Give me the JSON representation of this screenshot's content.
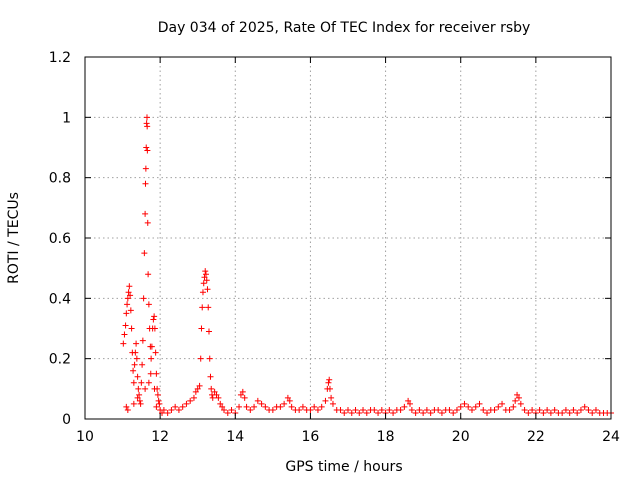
{
  "chart_data": {
    "type": "scatter",
    "title": "Day 034 of 2025, Rate Of TEC Index for receiver rsby",
    "xlabel": "GPS time / hours",
    "ylabel": "ROTI / TECUs",
    "xlim": [
      10,
      24
    ],
    "ylim": [
      0,
      1.2
    ],
    "xticks": [
      10,
      12,
      14,
      16,
      18,
      20,
      22,
      24
    ],
    "xtick_labels": [
      "10",
      "12",
      "14",
      "16",
      "18",
      "20",
      "22",
      "24"
    ],
    "yticks": [
      0,
      0.2,
      0.4,
      0.6,
      0.8,
      1.0,
      1.2
    ],
    "ytick_labels": [
      "0",
      "0.2",
      "0.4",
      "0.6",
      "0.8",
      "1",
      "1.2"
    ],
    "grid": true,
    "marker": "plus",
    "color": "#ff0000",
    "series": [
      {
        "name": "ROTI",
        "points": [
          [
            11.02,
            0.25
          ],
          [
            11.05,
            0.28
          ],
          [
            11.08,
            0.31
          ],
          [
            11.1,
            0.35
          ],
          [
            11.12,
            0.38
          ],
          [
            11.14,
            0.4
          ],
          [
            11.16,
            0.42
          ],
          [
            11.18,
            0.44
          ],
          [
            11.2,
            0.41
          ],
          [
            11.22,
            0.36
          ],
          [
            11.24,
            0.3
          ],
          [
            11.26,
            0.22
          ],
          [
            11.28,
            0.16
          ],
          [
            11.3,
            0.12
          ],
          [
            11.32,
            0.18
          ],
          [
            11.34,
            0.22
          ],
          [
            11.36,
            0.25
          ],
          [
            11.38,
            0.2
          ],
          [
            11.4,
            0.14
          ],
          [
            11.42,
            0.1
          ],
          [
            11.44,
            0.08
          ],
          [
            11.46,
            0.06
          ],
          [
            11.5,
            0.12
          ],
          [
            11.52,
            0.18
          ],
          [
            11.54,
            0.26
          ],
          [
            11.56,
            0.4
          ],
          [
            11.58,
            0.55
          ],
          [
            11.6,
            0.68
          ],
          [
            11.61,
            0.78
          ],
          [
            11.62,
            0.83
          ],
          [
            11.63,
            0.9
          ],
          [
            11.64,
            0.98
          ],
          [
            11.65,
            1.0
          ],
          [
            11.655,
            0.97
          ],
          [
            11.66,
            0.89
          ],
          [
            11.67,
            0.65
          ],
          [
            11.68,
            0.48
          ],
          [
            11.7,
            0.38
          ],
          [
            11.72,
            0.3
          ],
          [
            11.74,
            0.24
          ],
          [
            11.76,
            0.2
          ],
          [
            11.78,
            0.24
          ],
          [
            11.8,
            0.3
          ],
          [
            11.82,
            0.33
          ],
          [
            11.84,
            0.34
          ],
          [
            11.86,
            0.3
          ],
          [
            11.88,
            0.22
          ],
          [
            11.9,
            0.15
          ],
          [
            11.92,
            0.1
          ],
          [
            11.94,
            0.08
          ],
          [
            11.96,
            0.06
          ],
          [
            11.98,
            0.05
          ],
          [
            11.1,
            0.04
          ],
          [
            11.14,
            0.03
          ],
          [
            11.3,
            0.05
          ],
          [
            11.4,
            0.07
          ],
          [
            11.48,
            0.05
          ],
          [
            11.6,
            0.1
          ],
          [
            11.7,
            0.12
          ],
          [
            11.75,
            0.15
          ],
          [
            11.85,
            0.1
          ],
          [
            11.9,
            0.04
          ],
          [
            12.0,
            0.03
          ],
          [
            12.05,
            0.02
          ],
          [
            12.1,
            0.03
          ],
          [
            12.2,
            0.02
          ],
          [
            12.3,
            0.03
          ],
          [
            12.4,
            0.04
          ],
          [
            12.5,
            0.03
          ],
          [
            12.6,
            0.04
          ],
          [
            12.7,
            0.05
          ],
          [
            12.8,
            0.06
          ],
          [
            12.9,
            0.07
          ],
          [
            12.95,
            0.09
          ],
          [
            13.0,
            0.1
          ],
          [
            13.05,
            0.11
          ],
          [
            13.08,
            0.2
          ],
          [
            13.1,
            0.3
          ],
          [
            13.12,
            0.37
          ],
          [
            13.14,
            0.42
          ],
          [
            13.16,
            0.45
          ],
          [
            13.18,
            0.47
          ],
          [
            13.2,
            0.49
          ],
          [
            13.22,
            0.48
          ],
          [
            13.24,
            0.46
          ],
          [
            13.26,
            0.43
          ],
          [
            13.28,
            0.37
          ],
          [
            13.3,
            0.29
          ],
          [
            13.32,
            0.2
          ],
          [
            13.34,
            0.14
          ],
          [
            13.36,
            0.1
          ],
          [
            13.38,
            0.08
          ],
          [
            13.4,
            0.07
          ],
          [
            13.45,
            0.09
          ],
          [
            13.5,
            0.08
          ],
          [
            13.55,
            0.07
          ],
          [
            13.6,
            0.05
          ],
          [
            13.65,
            0.04
          ],
          [
            13.7,
            0.03
          ],
          [
            13.8,
            0.02
          ],
          [
            13.9,
            0.03
          ],
          [
            14.0,
            0.02
          ],
          [
            14.1,
            0.04
          ],
          [
            14.15,
            0.08
          ],
          [
            14.2,
            0.09
          ],
          [
            14.25,
            0.07
          ],
          [
            14.3,
            0.04
          ],
          [
            14.4,
            0.03
          ],
          [
            14.5,
            0.04
          ],
          [
            14.6,
            0.06
          ],
          [
            14.7,
            0.05
          ],
          [
            14.8,
            0.04
          ],
          [
            14.9,
            0.03
          ],
          [
            15.0,
            0.03
          ],
          [
            15.1,
            0.04
          ],
          [
            15.2,
            0.04
          ],
          [
            15.3,
            0.05
          ],
          [
            15.4,
            0.07
          ],
          [
            15.45,
            0.06
          ],
          [
            15.5,
            0.04
          ],
          [
            15.6,
            0.03
          ],
          [
            15.7,
            0.03
          ],
          [
            15.8,
            0.04
          ],
          [
            15.9,
            0.03
          ],
          [
            16.0,
            0.03
          ],
          [
            16.1,
            0.04
          ],
          [
            16.2,
            0.03
          ],
          [
            16.3,
            0.04
          ],
          [
            16.4,
            0.06
          ],
          [
            16.45,
            0.1
          ],
          [
            16.48,
            0.12
          ],
          [
            16.5,
            0.13
          ],
          [
            16.52,
            0.1
          ],
          [
            16.55,
            0.07
          ],
          [
            16.6,
            0.05
          ],
          [
            16.7,
            0.03
          ],
          [
            16.8,
            0.03
          ],
          [
            16.9,
            0.02
          ],
          [
            17.0,
            0.03
          ],
          [
            17.1,
            0.02
          ],
          [
            17.2,
            0.03
          ],
          [
            17.3,
            0.02
          ],
          [
            17.4,
            0.03
          ],
          [
            17.5,
            0.02
          ],
          [
            17.6,
            0.03
          ],
          [
            17.7,
            0.03
          ],
          [
            17.8,
            0.02
          ],
          [
            17.9,
            0.03
          ],
          [
            18.0,
            0.02
          ],
          [
            18.1,
            0.03
          ],
          [
            18.2,
            0.02
          ],
          [
            18.3,
            0.03
          ],
          [
            18.4,
            0.03
          ],
          [
            18.5,
            0.04
          ],
          [
            18.6,
            0.06
          ],
          [
            18.65,
            0.05
          ],
          [
            18.7,
            0.03
          ],
          [
            18.8,
            0.02
          ],
          [
            18.9,
            0.03
          ],
          [
            19.0,
            0.02
          ],
          [
            19.1,
            0.03
          ],
          [
            19.2,
            0.02
          ],
          [
            19.3,
            0.03
          ],
          [
            19.4,
            0.03
          ],
          [
            19.5,
            0.02
          ],
          [
            19.6,
            0.03
          ],
          [
            19.7,
            0.03
          ],
          [
            19.8,
            0.02
          ],
          [
            19.9,
            0.03
          ],
          [
            20.0,
            0.04
          ],
          [
            20.1,
            0.05
          ],
          [
            20.2,
            0.04
          ],
          [
            20.3,
            0.03
          ],
          [
            20.4,
            0.04
          ],
          [
            20.5,
            0.05
          ],
          [
            20.6,
            0.03
          ],
          [
            20.7,
            0.02
          ],
          [
            20.8,
            0.03
          ],
          [
            20.9,
            0.03
          ],
          [
            21.0,
            0.04
          ],
          [
            21.1,
            0.05
          ],
          [
            21.2,
            0.03
          ],
          [
            21.3,
            0.03
          ],
          [
            21.4,
            0.04
          ],
          [
            21.45,
            0.06
          ],
          [
            21.5,
            0.08
          ],
          [
            21.55,
            0.07
          ],
          [
            21.6,
            0.05
          ],
          [
            21.7,
            0.03
          ],
          [
            21.8,
            0.02
          ],
          [
            21.9,
            0.03
          ],
          [
            22.0,
            0.02
          ],
          [
            22.1,
            0.03
          ],
          [
            22.2,
            0.02
          ],
          [
            22.3,
            0.03
          ],
          [
            22.4,
            0.02
          ],
          [
            22.5,
            0.03
          ],
          [
            22.6,
            0.02
          ],
          [
            22.7,
            0.02
          ],
          [
            22.8,
            0.03
          ],
          [
            22.9,
            0.02
          ],
          [
            23.0,
            0.03
          ],
          [
            23.1,
            0.02
          ],
          [
            23.2,
            0.03
          ],
          [
            23.3,
            0.04
          ],
          [
            23.4,
            0.03
          ],
          [
            23.5,
            0.02
          ],
          [
            23.6,
            0.03
          ],
          [
            23.7,
            0.02
          ],
          [
            23.8,
            0.02
          ],
          [
            23.9,
            0.02
          ],
          [
            24.0,
            0.02
          ]
        ]
      }
    ]
  }
}
